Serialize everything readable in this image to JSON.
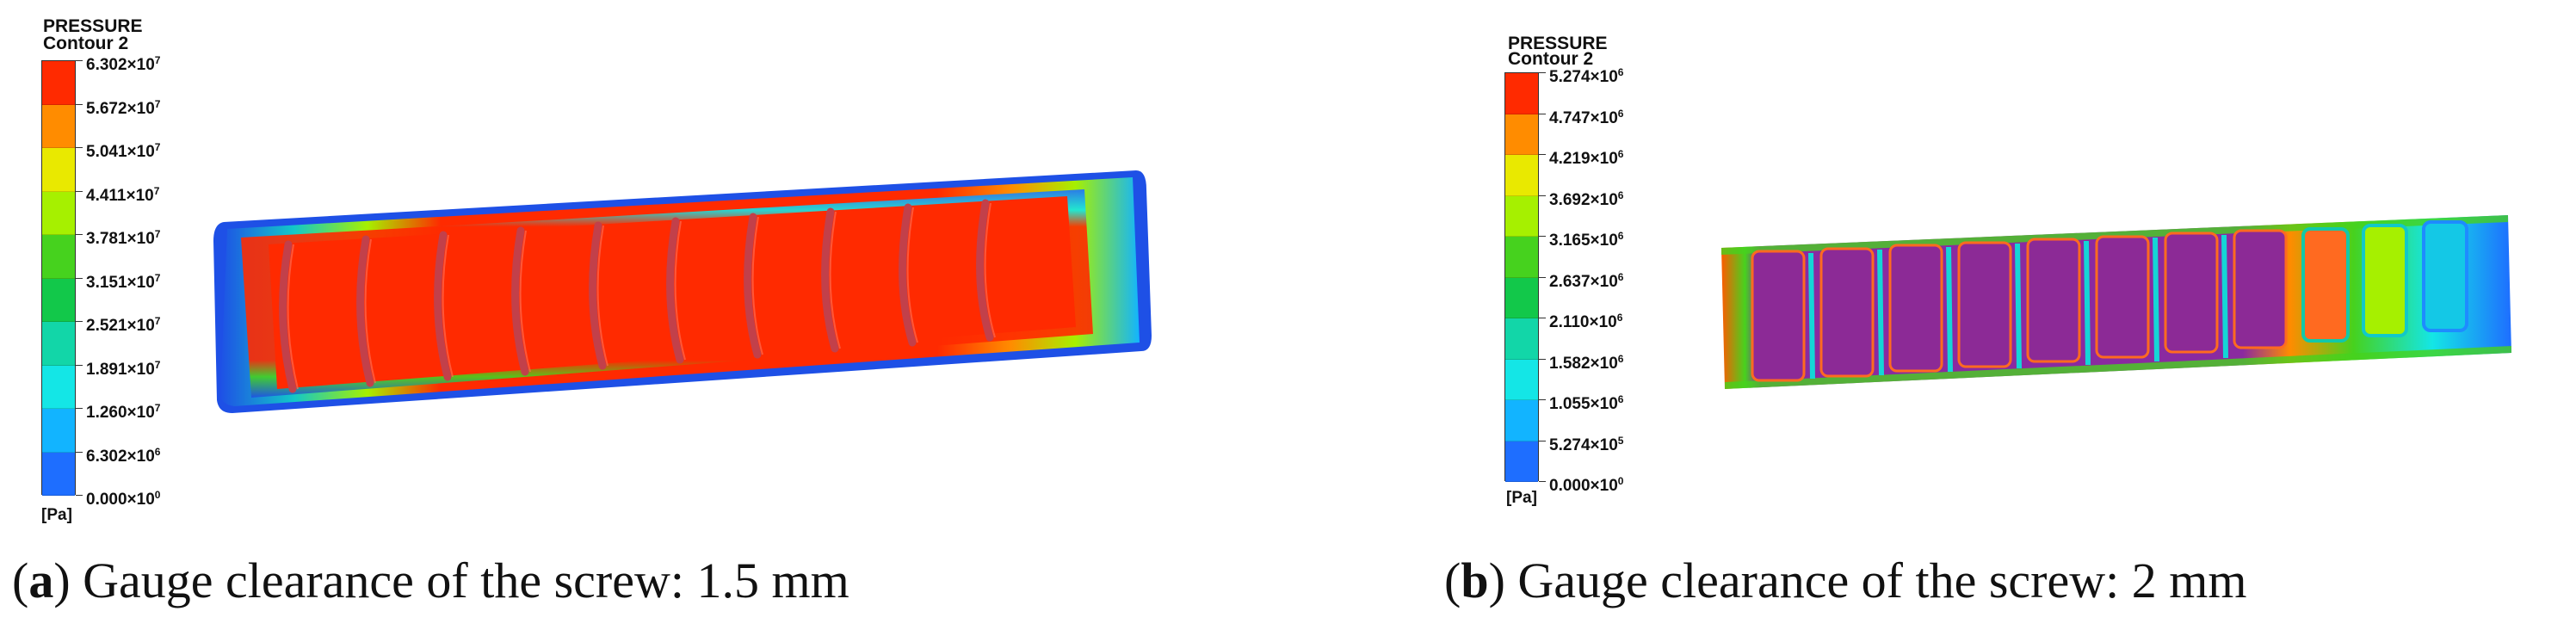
{
  "panels": [
    {
      "id": "a",
      "legend": {
        "title": "PRESSURE",
        "subtitle": "Contour 2",
        "unit": "[Pa]",
        "ticks": [
          {
            "mant": "6.302",
            "exp": "7"
          },
          {
            "mant": "5.672",
            "exp": "7"
          },
          {
            "mant": "5.041",
            "exp": "7"
          },
          {
            "mant": "4.411",
            "exp": "7"
          },
          {
            "mant": "3.781",
            "exp": "7"
          },
          {
            "mant": "3.151",
            "exp": "7"
          },
          {
            "mant": "2.521",
            "exp": "7"
          },
          {
            "mant": "1.891",
            "exp": "7"
          },
          {
            "mant": "1.260",
            "exp": "7"
          },
          {
            "mant": "6.302",
            "exp": "6"
          },
          {
            "mant": "0.000",
            "exp": "0"
          }
        ]
      },
      "caption": {
        "letter": "a",
        "text": "Gauge clearance of the screw: 1.5 mm"
      }
    },
    {
      "id": "b",
      "legend": {
        "title": "PRESSURE",
        "subtitle": "Contour 2",
        "unit": "[Pa]",
        "ticks": [
          {
            "mant": "5.274",
            "exp": "6"
          },
          {
            "mant": "4.747",
            "exp": "6"
          },
          {
            "mant": "4.219",
            "exp": "6"
          },
          {
            "mant": "3.692",
            "exp": "6"
          },
          {
            "mant": "3.165",
            "exp": "6"
          },
          {
            "mant": "2.637",
            "exp": "6"
          },
          {
            "mant": "2.110",
            "exp": "6"
          },
          {
            "mant": "1.582",
            "exp": "6"
          },
          {
            "mant": "1.055",
            "exp": "6"
          },
          {
            "mant": "5.274",
            "exp": "5"
          },
          {
            "mant": "0.000",
            "exp": "0"
          }
        ]
      },
      "caption": {
        "letter": "b",
        "text": "Gauge clearance of the screw: 2 mm"
      }
    }
  ],
  "colormap": [
    "#ff2a00",
    "#ff8c00",
    "#e9e900",
    "#a6f000",
    "#46d21e",
    "#12c84a",
    "#12d6a8",
    "#14e6e6",
    "#12b4ff",
    "#1e6eff",
    "#0a28dc"
  ]
}
